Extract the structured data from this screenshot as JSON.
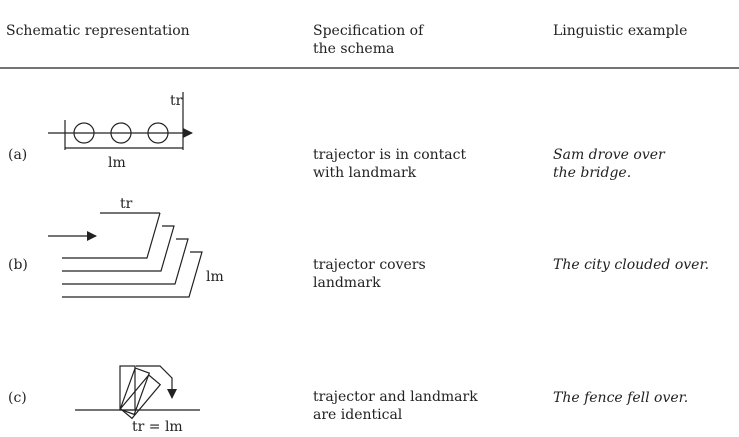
{
  "table": {
    "headers": [
      [
        "Schematic representation"
      ],
      [
        "Specification of",
        "the schema"
      ],
      [
        "Linguistic example"
      ]
    ],
    "rows": [
      {
        "label": "(a)",
        "diagram": [
          "tr",
          "lm"
        ],
        "specification": [
          "trajector is in contact",
          "with landmark"
        ],
        "example": [
          "Sam drove over",
          "the bridge."
        ]
      },
      {
        "label": "(b)",
        "diagram": [
          "tr",
          "lm"
        ],
        "specification": [
          "trajector covers",
          "landmark"
        ],
        "example": [
          "The city clouded over."
        ]
      },
      {
        "label": "(c)",
        "diagram": [
          "tr = lm"
        ],
        "specification": [
          "trajector and landmark",
          "are identical"
        ],
        "example": [
          "The fence fell over."
        ]
      }
    ]
  }
}
